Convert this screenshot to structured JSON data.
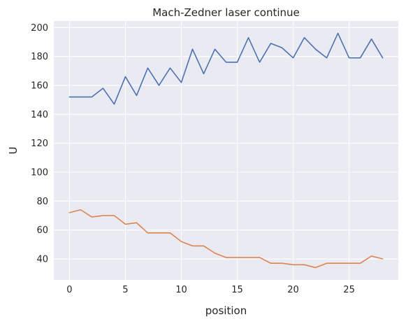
{
  "chart_data": {
    "type": "line",
    "title": "Mach-Zedner laser continue",
    "xlabel": "position",
    "ylabel": "U",
    "xlim": [
      -1.4,
      29.4
    ],
    "ylim": [
      25.5,
      204.5
    ],
    "xticks": [
      0,
      5,
      10,
      15,
      20,
      25
    ],
    "yticks": [
      40,
      60,
      80,
      100,
      120,
      140,
      160,
      180,
      200
    ],
    "grid": true,
    "legend": "none",
    "x": [
      0,
      1,
      2,
      3,
      4,
      5,
      6,
      7,
      8,
      9,
      10,
      11,
      12,
      13,
      14,
      15,
      16,
      17,
      18,
      19,
      20,
      21,
      22,
      23,
      24,
      25,
      26,
      27,
      28
    ],
    "series": [
      {
        "color": "#4c72b0",
        "values": [
          152,
          152,
          152,
          158,
          147,
          166,
          153,
          172,
          160,
          172,
          162,
          185,
          168,
          185,
          176,
          176,
          193,
          176,
          189,
          186,
          179,
          193,
          185,
          179,
          196,
          179,
          179,
          192,
          179
        ]
      },
      {
        "color": "#dd8452",
        "values": [
          72,
          74,
          69,
          70,
          70,
          64,
          65,
          58,
          58,
          58,
          52,
          49,
          49,
          44,
          41,
          41,
          41,
          41,
          37,
          37,
          36,
          36,
          34,
          37,
          37,
          37,
          37,
          42,
          40
        ]
      }
    ],
    "style": {
      "background": "#eaeaf2",
      "grid_color": "#ffffff"
    }
  }
}
